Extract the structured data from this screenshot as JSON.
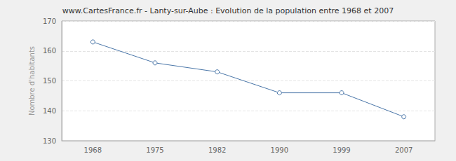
{
  "chart_data": {
    "type": "line",
    "title": "www.CartesFrance.fr - Lanty-sur-Aube : Evolution de la population entre 1968 et 2007",
    "y_label": "Nombre d'habitants",
    "categories": [
      "1968",
      "1975",
      "1982",
      "1990",
      "1999",
      "2007"
    ],
    "values": [
      163,
      156,
      153,
      146,
      146,
      138
    ],
    "color": "#4a76a8",
    "marker": "circle",
    "ylim": [
      130,
      170
    ],
    "yticks": [
      130,
      140,
      150,
      160,
      170
    ],
    "grid": true
  }
}
